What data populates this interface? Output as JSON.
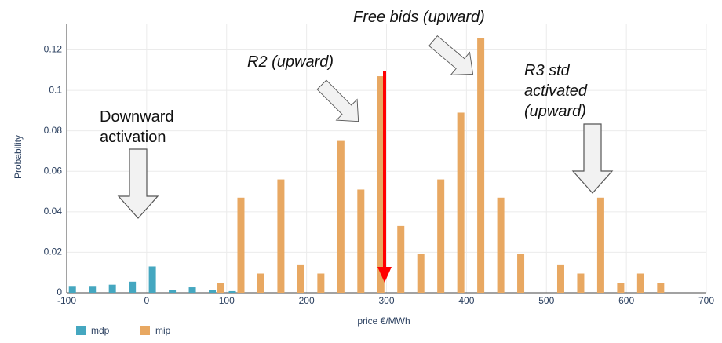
{
  "chart_data": {
    "type": "bar",
    "x_label": "price €/MWh",
    "y_label": "Probability",
    "x": [
      -87.5,
      -62.5,
      -37.5,
      -12.5,
      12.5,
      37.5,
      62.5,
      87.5,
      112.5,
      137.5,
      162.5,
      187.5,
      212.5,
      237.5,
      262.5,
      287.5,
      312.5,
      337.5,
      362.5,
      387.5,
      412.5,
      437.5,
      462.5,
      487.5,
      512.5,
      537.5,
      562.5,
      587.5,
      612.5,
      637.5
    ],
    "series": [
      {
        "name": "mdp",
        "color": "#45a7c0",
        "values": [
          0.003,
          0.003,
          0.004,
          0.0055,
          0.013,
          0.0012,
          0.0027,
          0.0012,
          0.0008,
          null,
          null,
          null,
          null,
          null,
          null,
          null,
          null,
          null,
          null,
          null,
          null,
          null,
          null,
          null,
          null,
          null,
          null,
          null,
          null,
          null
        ]
      },
      {
        "name": "mip",
        "color": "#e8a862",
        "values": [
          null,
          null,
          null,
          null,
          null,
          null,
          null,
          0.005,
          0.047,
          0.0095,
          0.056,
          0.014,
          0.0095,
          0.075,
          0.051,
          0.107,
          0.033,
          0.019,
          0.056,
          0.089,
          0.126,
          0.047,
          0.019,
          null,
          0.014,
          0.0095,
          0.047,
          0.005,
          0.0095,
          0.005
        ]
      }
    ],
    "xlim": [
      -100,
      700
    ],
    "xticks": [
      -100,
      0,
      100,
      200,
      300,
      400,
      500,
      600,
      700
    ],
    "ylim": [
      0,
      0.133
    ],
    "yticks": [
      0,
      0.02,
      0.04,
      0.06,
      0.08,
      0.1,
      0.12
    ],
    "grid": true,
    "annotations": [
      {
        "lines": [
          "Free bids (upward)"
        ]
      },
      {
        "lines": [
          "R2 (upward)"
        ]
      },
      {
        "lines": [
          "Downward",
          "activation"
        ]
      },
      {
        "lines": [
          "R3 std",
          "activated",
          "(upward)"
        ]
      }
    ]
  }
}
